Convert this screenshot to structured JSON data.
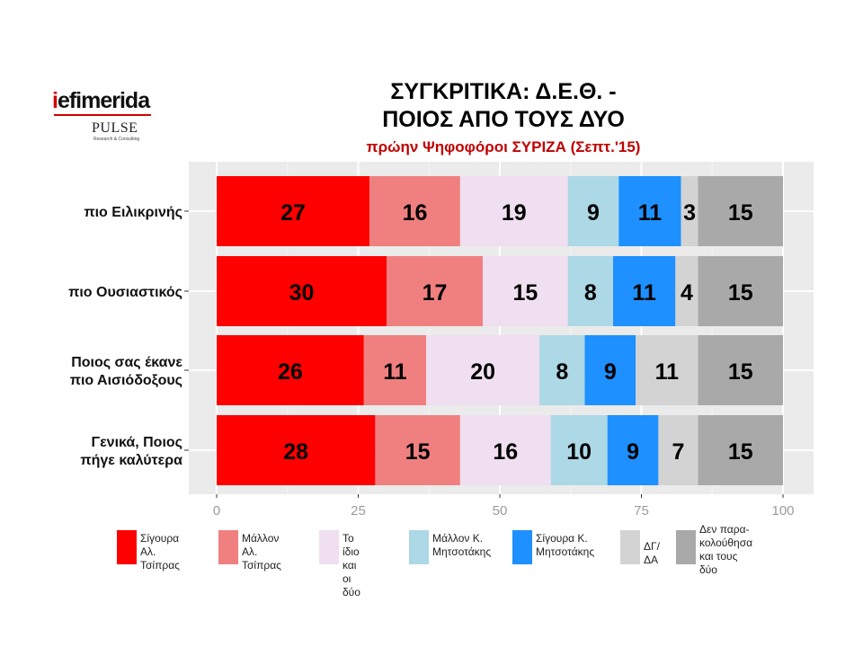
{
  "logo": {
    "main_i": "i",
    "main_rest": "efimerida",
    "sub": "PULSE",
    "tagline": "Research & Consulting"
  },
  "header": {
    "title_line1": "ΣΥΓΚΡΙΤΙΚΑ:  Δ.Ε.Θ. -",
    "title_line2": "ΠΟΙΟΣ ΑΠΟ ΤΟΥΣ ΔΥΟ",
    "subtitle": "πρώην Ψηφοφόροι ΣΥΡΙΖΑ (Σεπτ.'15)"
  },
  "chart_data": {
    "type": "bar",
    "orientation": "horizontal",
    "stacked": true,
    "title": "ΣΥΓΚΡΙΤΙΚΑ:  Δ.Ε.Θ. - ΠΟΙΟΣ ΑΠΟ ΤΟΥΣ ΔΥΟ",
    "subtitle": "πρώην Ψηφοφόροι ΣΥΡΙΖΑ (Σεπτ.'15)",
    "categories": [
      "πιο Ειλικρινής",
      "πιο Ουσιαστικός",
      "Ποιος σας έκανε πιο Αισιόδοξους",
      "Γενικά, Ποιος πήγε καλύτερα"
    ],
    "category_lines": [
      [
        "πιο Ειλικρινής"
      ],
      [
        "πιο Ουσιαστικός"
      ],
      [
        "Ποιος σας έκανε",
        "πιο Αισιόδοξους"
      ],
      [
        "Γενικά, Ποιος",
        "πήγε καλύτερα"
      ]
    ],
    "series": [
      {
        "name": "Σίγουρα Αλ. Τσίπρας",
        "legend": "Σίγουρα\nΑλ. Τσίπρας",
        "color": "#ff0000",
        "values": [
          27,
          30,
          26,
          28
        ]
      },
      {
        "name": "Μάλλον Αλ. Τσίπρας",
        "legend": "Μάλλον\nΑλ. Τσίπρας",
        "color": "#f08080",
        "values": [
          16,
          17,
          11,
          15
        ]
      },
      {
        "name": "Το ίδιο και οι δύο",
        "legend": "Το ίδιο\nκαι οι δύο",
        "color": "#f0dff0",
        "values": [
          19,
          15,
          20,
          16
        ]
      },
      {
        "name": "Μάλλον Κ. Μητσοτάκης",
        "legend": "Μάλλον Κ.\nΜητσοτάκης",
        "color": "#add8e6",
        "values": [
          9,
          8,
          8,
          10
        ]
      },
      {
        "name": "Σίγουρα Κ. Μητσοτάκης",
        "legend": "Σίγουρα Κ.\nΜητσοτάκης",
        "color": "#1e90ff",
        "values": [
          11,
          11,
          9,
          9
        ]
      },
      {
        "name": "ΔΓ/ΔΑ",
        "legend": "ΔΓ/ΔΑ",
        "color": "#d3d3d3",
        "values": [
          3,
          4,
          11,
          7
        ]
      },
      {
        "name": "Δεν παρακολούθησα και τους δύο",
        "legend": "Δεν παρα-\nκολούθησα\nκαι τους δύο",
        "color": "#a9a9a9",
        "values": [
          15,
          15,
          15,
          15
        ]
      }
    ],
    "xlim": [
      0,
      100
    ],
    "xticks": [
      0,
      25,
      50,
      75,
      100
    ],
    "grid": true,
    "legend_position": "bottom"
  }
}
